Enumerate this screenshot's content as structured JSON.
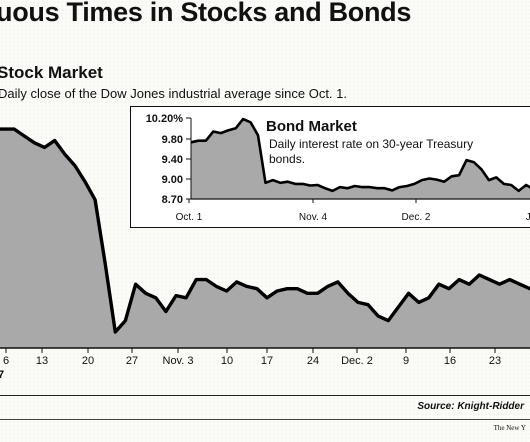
{
  "header": {
    "title": "uous Times in Stocks and Bonds"
  },
  "stock": {
    "title": "Stock Market",
    "subtitle": "Daily close of the Dow Jones industrial average since Oct. 1.",
    "year_fragment": "7"
  },
  "bond": {
    "title": "Bond Market",
    "subtitle": "Daily interest rate on 30-year Treasury bonds."
  },
  "footer": {
    "source": "Source: Knight-Ridder",
    "credit": "The New Y"
  },
  "chart_data": [
    {
      "type": "area",
      "title": "Stock Market",
      "subtitle": "Daily close of the Dow Jones industrial average since Oct. 1.",
      "x_tick_labels": [
        "6",
        "13",
        "20",
        "27",
        "Nov. 3",
        "10",
        "17",
        "24",
        "Dec. 2",
        "9",
        "16",
        "23"
      ],
      "values": [
        96,
        96,
        96,
        93,
        90,
        88,
        91,
        85,
        80,
        73,
        65,
        37,
        7,
        12,
        28,
        24,
        22,
        16,
        23,
        22,
        30,
        30,
        27,
        25,
        29,
        27,
        26,
        22,
        25,
        26,
        26,
        24,
        24,
        27,
        29,
        24,
        20,
        19,
        14,
        12,
        18,
        24,
        20,
        22,
        28,
        26,
        30,
        28,
        32,
        30,
        28,
        30,
        28,
        26,
        25
      ],
      "ylim": [
        0,
        100
      ],
      "fill_color": "#a9a9a9",
      "line_color": "#000000"
    },
    {
      "type": "area",
      "title": "Bond Market",
      "subtitle": "Daily interest rate on 30-year Treasury bonds.",
      "y_tick_labels": [
        "10.20%",
        "9.80",
        "9.40",
        "9.00",
        "8.70"
      ],
      "x_tick_labels": [
        "Oct. 1",
        "Nov. 4",
        "Dec. 2",
        "Ja"
      ],
      "values": [
        9.75,
        9.78,
        9.78,
        9.95,
        9.92,
        9.97,
        10.01,
        10.18,
        10.12,
        9.88,
        9.0,
        9.05,
        9.0,
        9.02,
        8.98,
        8.98,
        8.95,
        8.96,
        8.9,
        8.85,
        8.92,
        8.9,
        8.94,
        8.92,
        8.92,
        8.9,
        8.9,
        8.86,
        8.92,
        8.94,
        8.98,
        9.05,
        9.08,
        9.06,
        9.02,
        9.12,
        9.14,
        9.42,
        9.38,
        9.25,
        9.05,
        9.1,
        8.98,
        8.96,
        8.85,
        8.96,
        8.88,
        8.92
      ],
      "ylim": [
        8.7,
        10.3
      ],
      "fill_color": "#a9a9a9",
      "line_color": "#000000"
    }
  ]
}
